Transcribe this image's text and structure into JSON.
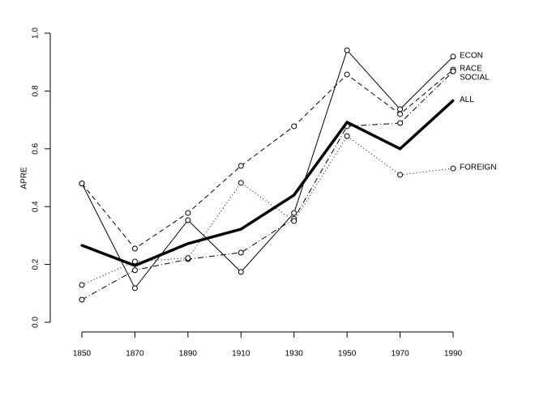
{
  "chart_data": {
    "type": "line",
    "y_label": "APRE",
    "x": [
      1850,
      1870,
      1890,
      1910,
      1930,
      1950,
      1970,
      1990
    ],
    "xlim": [
      1850,
      1990
    ],
    "xticks": [
      1850,
      1870,
      1890,
      1910,
      1930,
      1950,
      1970,
      1990
    ],
    "ylim": [
      0,
      1
    ],
    "yticks": [
      {
        "value": 0,
        "label": "0.0"
      },
      0.2,
      0.4,
      0.6,
      0.8,
      {
        "value": 1,
        "label": "1.0"
      }
    ],
    "series": [
      {
        "name": "ECON",
        "color": "#000000",
        "linestyle": "solid",
        "markers": true,
        "values": [
          0.48,
          0.118,
          0.353,
          0.174,
          0.378,
          0.941,
          0.737,
          0.919
        ]
      },
      {
        "name": "RACE",
        "color": "#000000",
        "linestyle": "dashed",
        "markers": true,
        "values": [
          0.48,
          0.255,
          0.378,
          0.541,
          0.678,
          0.857,
          0.72,
          0.874
        ]
      },
      {
        "name": "SOCIAL",
        "color": "#000000",
        "linestyle": "dashdot",
        "markers": true,
        "values": [
          0.078,
          0.18,
          0.218,
          0.241,
          0.358,
          0.678,
          0.689,
          0.868
        ]
      },
      {
        "name": "ALL",
        "color": "#000000",
        "linestyle": "thick",
        "markers": false,
        "values": [
          0.266,
          0.196,
          0.272,
          0.322,
          0.44,
          0.692,
          0.6,
          0.767
        ]
      },
      {
        "name": "FOREIGN",
        "color": "#000000",
        "linestyle": "dotted",
        "markers": true,
        "values": [
          0.129,
          0.21,
          0.222,
          0.482,
          0.35,
          0.644,
          0.51,
          0.532
        ]
      }
    ]
  }
}
